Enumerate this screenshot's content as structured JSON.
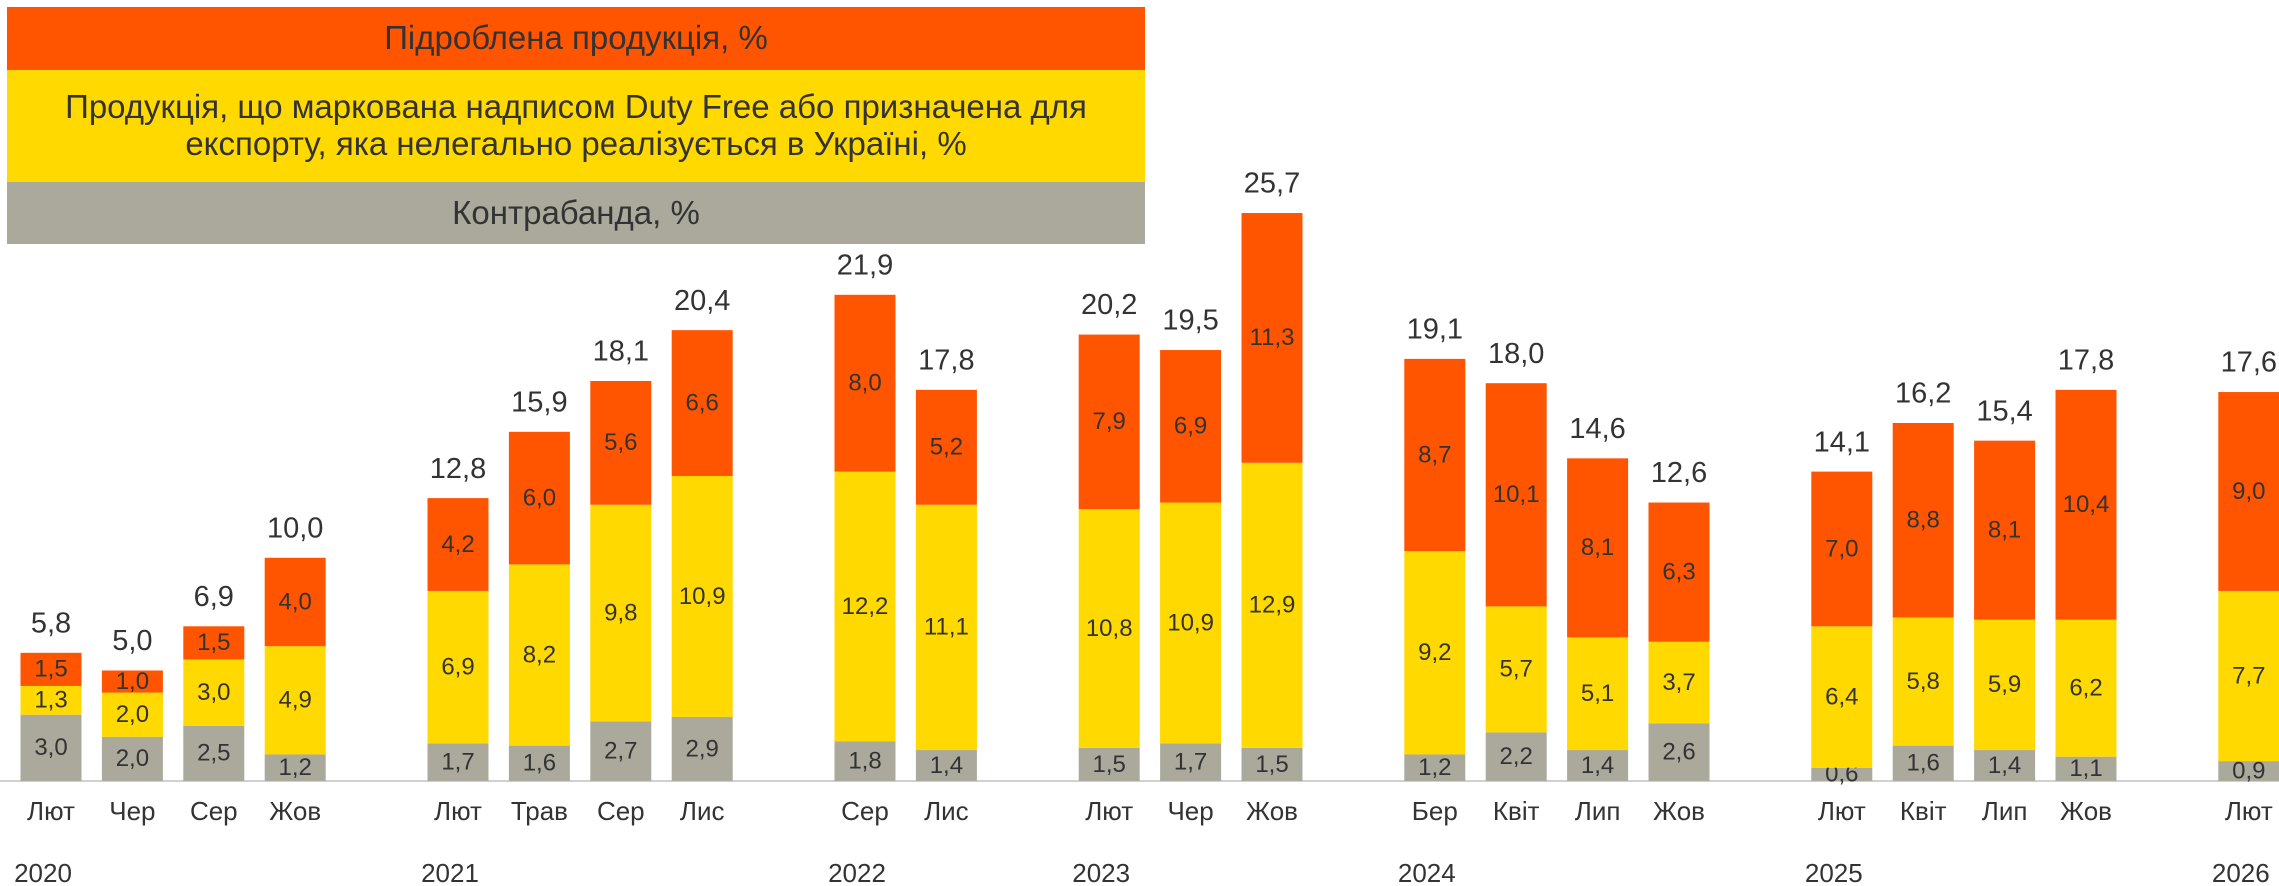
{
  "chart_data": {
    "type": "stacked_bar",
    "groups": [
      {
        "label": "2020",
        "categories": [
          "Лют",
          "Чер",
          "Сер",
          "Жов"
        ]
      },
      {
        "label": "2021",
        "categories": [
          "Лют",
          "Трав",
          "Сер",
          "Лис"
        ]
      },
      {
        "label": "2022",
        "categories": [
          "Сер",
          "Лис"
        ]
      },
      {
        "label": "2023",
        "categories": [
          "Лют",
          "Чер",
          "Жов"
        ]
      },
      {
        "label": "2024",
        "categories": [
          "Бер",
          "Квіт",
          "Лип",
          "Жов"
        ]
      },
      {
        "label": "2025",
        "categories": [
          "Лют",
          "Квіт",
          "Лип",
          "Жов"
        ]
      },
      {
        "label": "2026",
        "categories": [
          "Лют"
        ]
      }
    ],
    "series": [
      {
        "name": "Контрабанда, %",
        "color": "#aba99b",
        "values": [
          3.0,
          2.0,
          2.5,
          1.2,
          1.7,
          1.6,
          2.7,
          2.9,
          1.8,
          1.4,
          1.5,
          1.7,
          1.5,
          1.2,
          2.2,
          1.4,
          2.6,
          0.6,
          1.6,
          1.4,
          1.1,
          0.9
        ],
        "value_labels": [
          "3,0",
          "2,0",
          "2,5",
          "1,2",
          "1,7",
          "1,6",
          "2,7",
          "2,9",
          "1,8",
          "1,4",
          "1,5",
          "1,7",
          "1,5",
          "1,2",
          "2,2",
          "1,4",
          "2,6",
          "0,6",
          "1,6",
          "1,4",
          "1,1",
          "0,9"
        ]
      },
      {
        "name": "Продукція, що маркована надписом Duty Free або призначена для експорту, яка нелегально реалізується в Україні, %",
        "color": "#ffd900",
        "values": [
          1.3,
          2.0,
          3.0,
          4.9,
          6.9,
          8.2,
          9.8,
          10.9,
          12.2,
          11.1,
          10.8,
          10.9,
          12.9,
          9.2,
          5.7,
          5.1,
          3.7,
          6.4,
          5.8,
          5.9,
          6.2,
          7.7
        ],
        "value_labels": [
          "1,3",
          "2,0",
          "3,0",
          "4,9",
          "6,9",
          "8,2",
          "9,8",
          "10,9",
          "12,2",
          "11,1",
          "10,8",
          "10,9",
          "12,9",
          "9,2",
          "5,7",
          "5,1",
          "3,7",
          "6,4",
          "5,8",
          "5,9",
          "6,2",
          "7,7"
        ]
      },
      {
        "name": "Підроблена продукція, %",
        "color": "#ff5500",
        "values": [
          1.5,
          1.0,
          1.5,
          4.0,
          4.2,
          6.0,
          5.6,
          6.6,
          8.0,
          5.2,
          7.9,
          6.9,
          11.3,
          8.7,
          10.1,
          8.1,
          6.3,
          7.0,
          8.8,
          8.1,
          10.4,
          9.0
        ],
        "value_labels": [
          "1,5",
          "1,0",
          "1,5",
          "4,0",
          "4,2",
          "6,0",
          "5,6",
          "6,6",
          "8,0",
          "5,2",
          "7,9",
          "6,9",
          "11,3",
          "8,7",
          "10,1",
          "8,1",
          "6,3",
          "7,0",
          "8,8",
          "8,1",
          "10,4",
          "9,0"
        ]
      }
    ],
    "totals": [
      5.8,
      5.0,
      6.9,
      10.0,
      12.8,
      15.9,
      18.1,
      20.4,
      21.9,
      17.8,
      20.2,
      19.5,
      25.7,
      19.1,
      18.0,
      14.6,
      12.6,
      14.1,
      16.2,
      15.4,
      17.8,
      17.6
    ],
    "total_labels": [
      "5,8",
      "5,0",
      "6,9",
      "10,0",
      "12,8",
      "15,9",
      "18,1",
      "20,4",
      "21,9",
      "17,8",
      "20,2",
      "19,5",
      "25,7",
      "19,1",
      "18,0",
      "14,6",
      "12,6",
      "14,1",
      "16,2",
      "15,4",
      "17,8",
      "17,6"
    ]
  }
}
